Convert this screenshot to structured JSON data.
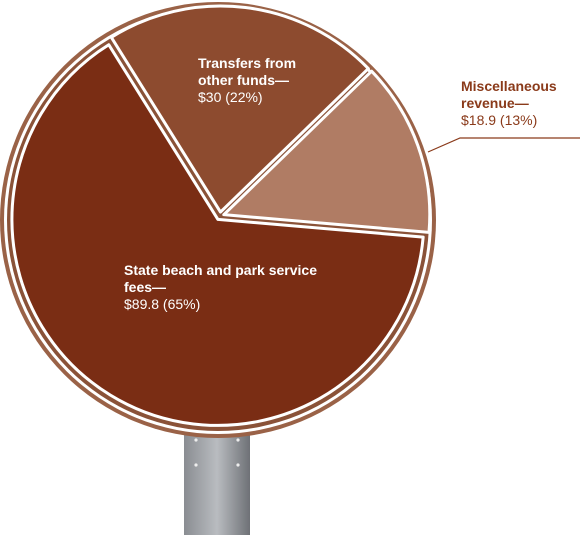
{
  "chart_data": {
    "type": "pie",
    "categories": [
      "State beach and park service fees—",
      "Transfers from other funds—",
      "Miscellaneous revenue—"
    ],
    "values": [
      89.8,
      30,
      18.9
    ],
    "value_labels": [
      "$89.8 (65%)",
      "$30 (22%)",
      "$18.9 (13%)"
    ],
    "colors": [
      "#7a2d14",
      "#8d4b2f",
      "#b07c64"
    ]
  }
}
